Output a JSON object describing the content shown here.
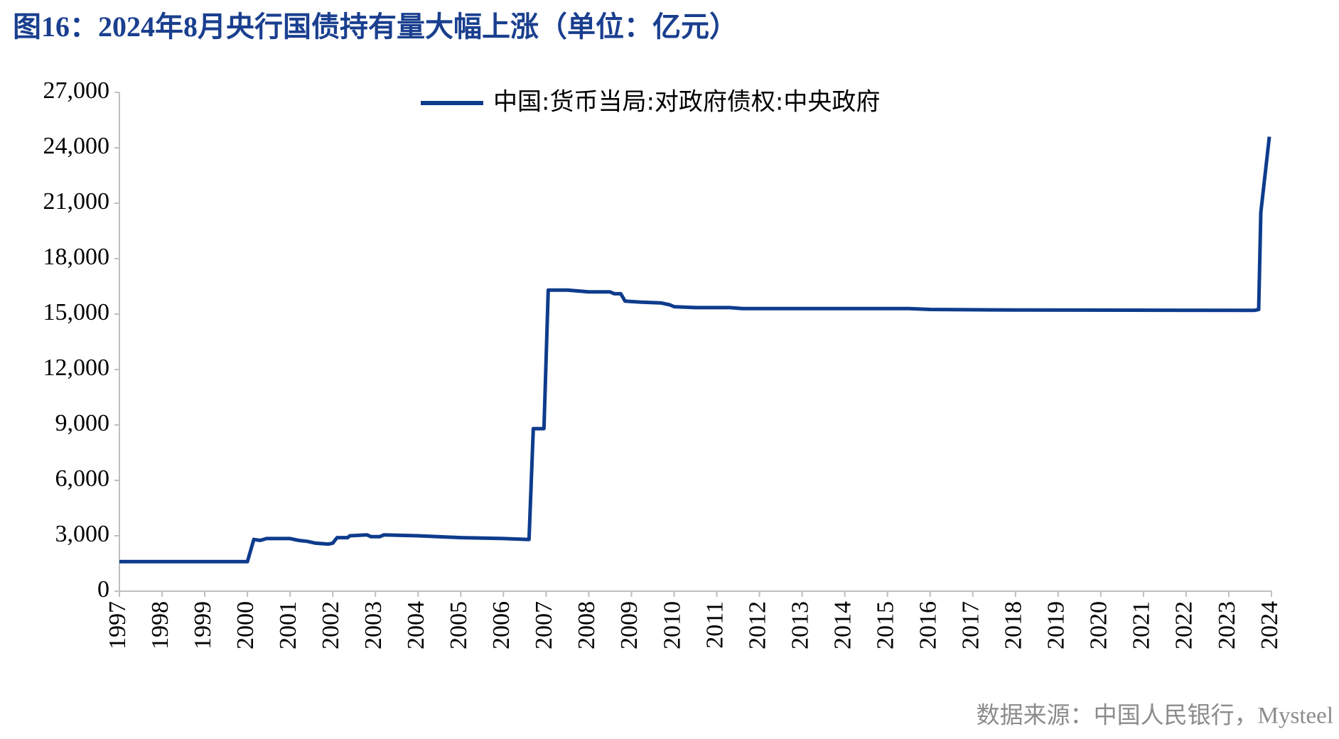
{
  "chart_data": {
    "type": "line",
    "title": "图16：2024年8月央行国债持有量大幅上涨（单位：亿元）",
    "source": "数据来源：中国人民银行，Mysteel",
    "x": [
      1997.0,
      2000.0,
      2000.15,
      2000.3,
      2000.45,
      2001.0,
      2001.2,
      2001.4,
      2001.6,
      2001.9,
      2002.0,
      2002.1,
      2002.35,
      2002.4,
      2002.8,
      2002.9,
      2003.1,
      2003.2,
      2004.0,
      2005.0,
      2006.0,
      2006.6,
      2006.7,
      2006.95,
      2007.05,
      2007.5,
      2008.0,
      2008.5,
      2008.6,
      2008.75,
      2008.85,
      2009.2,
      2009.7,
      2009.9,
      2010.0,
      2010.5,
      2011.3,
      2011.6,
      2015.5,
      2016.0,
      2018.0,
      2023.6,
      2023.7,
      2023.75,
      2023.95
    ],
    "series": [
      {
        "name": "中国:货币当局:对政府债权:中央政府",
        "color": "#0e3b8c",
        "values": [
          1600,
          1600,
          2800,
          2750,
          2850,
          2850,
          2750,
          2700,
          2600,
          2550,
          2600,
          2900,
          2900,
          3000,
          3050,
          2950,
          2950,
          3050,
          3000,
          2900,
          2850,
          2800,
          8800,
          8800,
          16300,
          16300,
          16200,
          16200,
          16100,
          16100,
          15700,
          15650,
          15600,
          15500,
          15400,
          15350,
          15350,
          15300,
          15300,
          15250,
          15220,
          15200,
          15250,
          20500,
          24600
        ]
      }
    ],
    "xlim": [
      1997,
      2024
    ],
    "xticks": [
      1997,
      1998,
      1999,
      2000,
      2001,
      2002,
      2003,
      2004,
      2005,
      2006,
      2007,
      2008,
      2009,
      2010,
      2011,
      2012,
      2013,
      2014,
      2015,
      2016,
      2017,
      2018,
      2019,
      2020,
      2021,
      2022,
      2023,
      2024
    ],
    "ylim": [
      0,
      27000
    ],
    "yticks": [
      0,
      {
        "value": 3000,
        "label": "3,000"
      },
      {
        "value": 6000,
        "label": "6,000"
      },
      {
        "value": 9000,
        "label": "9,000"
      },
      {
        "value": 12000,
        "label": "12,000"
      },
      {
        "value": 15000,
        "label": "15,000"
      },
      {
        "value": 18000,
        "label": "18,000"
      },
      {
        "value": 21000,
        "label": "21,000"
      },
      {
        "value": 24000,
        "label": "24,000"
      },
      {
        "value": 27000,
        "label": "27,000"
      }
    ],
    "grid": false
  }
}
